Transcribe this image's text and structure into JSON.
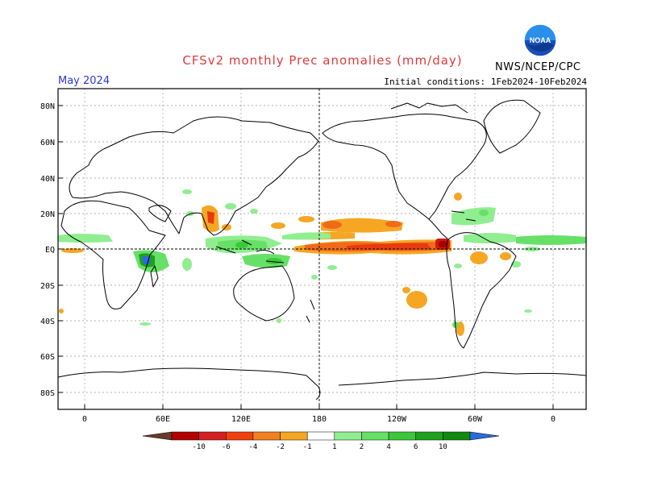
{
  "header": {
    "title": "CFSv2 monthly Prec anomalies (mm/day)",
    "valid_month": "May 2024",
    "initial_conditions": "Initial conditions: 1Feb2024-10Feb2024",
    "agency": "NWS/NCEP/CPC",
    "logo_text": "NOAA"
  },
  "map": {
    "lat_labels": [
      "80N",
      "60N",
      "40N",
      "20N",
      "EQ",
      "20S",
      "40S",
      "60S",
      "80S"
    ],
    "lon_labels": [
      "0",
      "60E",
      "120E",
      "180",
      "120W",
      "60W",
      "0"
    ]
  },
  "colorbar": {
    "ticks": [
      "-10",
      "-6",
      "-4",
      "-2",
      "-1",
      "1",
      "2",
      "4",
      "6",
      "10"
    ],
    "colors": [
      "#6b3a2a",
      "#b40000",
      "#d42020",
      "#f04010",
      "#f08020",
      "#f5a623",
      "#ffffff",
      "#90ee90",
      "#66e066",
      "#3cc83c",
      "#20a020",
      "#108a10",
      "#2a6bdc"
    ]
  }
}
